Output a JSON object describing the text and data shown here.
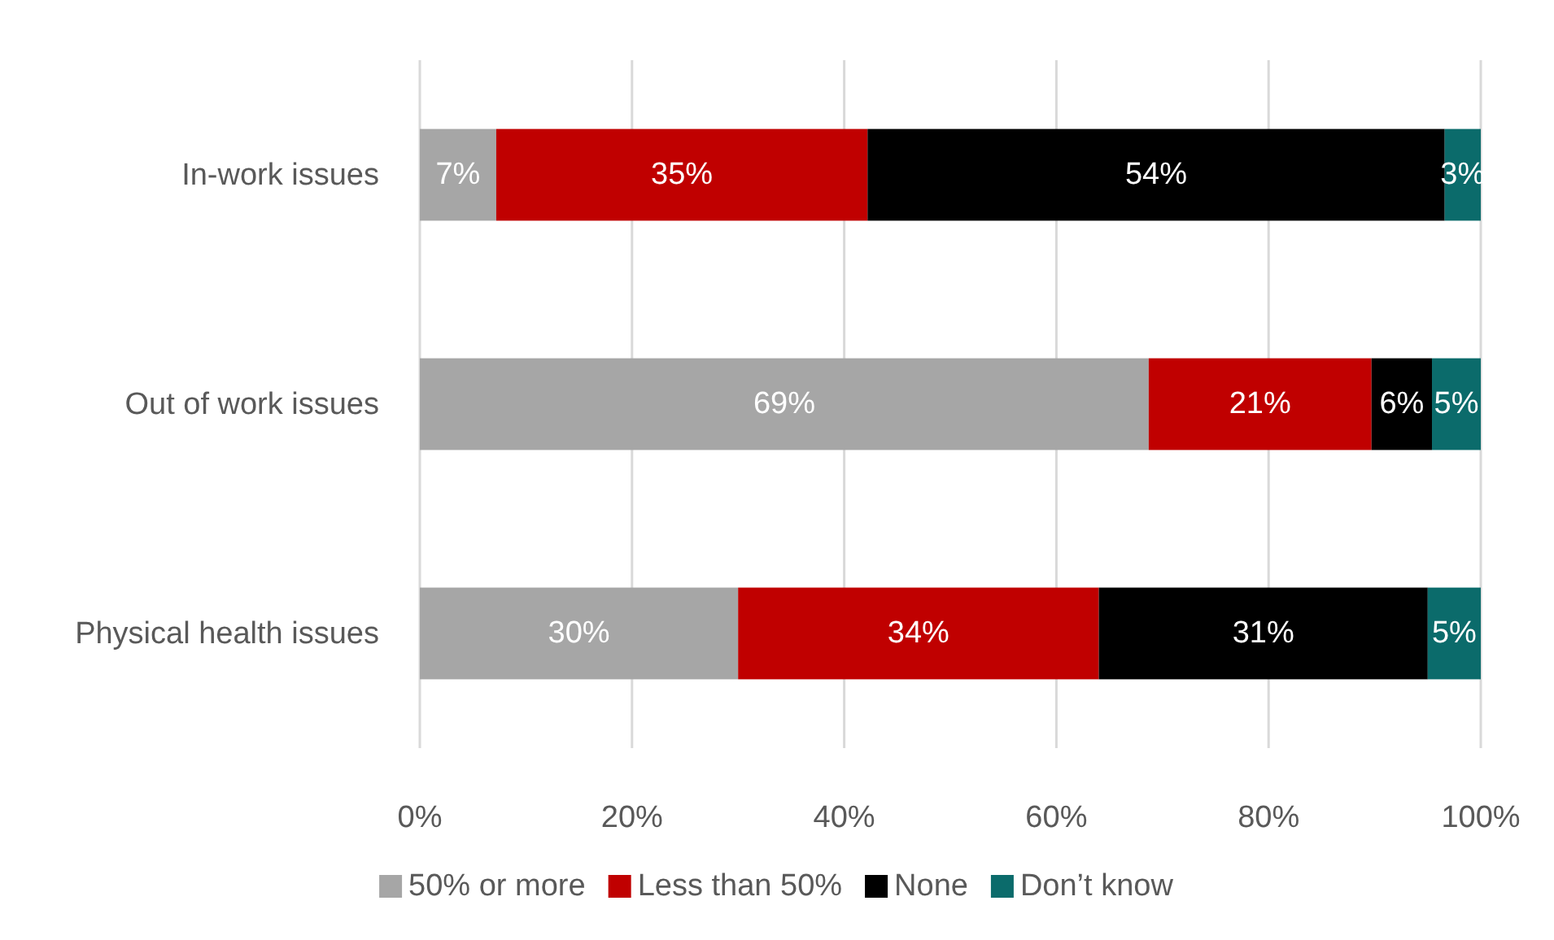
{
  "chart_data": {
    "type": "bar",
    "orientation": "horizontal",
    "stacked": true,
    "categories": [
      "In-work issues",
      "Out of work issues",
      "Physical health issues"
    ],
    "series": [
      {
        "name": "50% or more",
        "color": "#a6a6a6",
        "values": [
          7.2,
          68.7,
          30
        ],
        "value_labels": [
          "7%",
          "69%",
          "30%"
        ]
      },
      {
        "name": "Less than 50%",
        "color": "#c00000",
        "values": [
          35,
          21,
          34
        ],
        "value_labels": [
          "35%",
          "21%",
          "34%"
        ]
      },
      {
        "name": "None",
        "color": "#000000",
        "values": [
          54.4,
          5.7,
          31
        ],
        "value_labels": [
          "54%",
          "6%",
          "31%"
        ]
      },
      {
        "name": "Don’t know",
        "color": "#0b6b6b",
        "values": [
          3.4,
          4.6,
          5
        ],
        "value_labels": [
          "3%",
          "5%",
          "5%"
        ]
      }
    ],
    "xlim": [
      0,
      100
    ],
    "xticks": [
      {
        "value": 0,
        "label": "0%"
      },
      {
        "value": 20,
        "label": "20%"
      },
      {
        "value": 40,
        "label": "40%"
      },
      {
        "value": 60,
        "label": "60%"
      },
      {
        "value": 80,
        "label": "80%"
      },
      {
        "value": 100,
        "label": "100%"
      }
    ],
    "grid": "x",
    "legend": "bottom"
  }
}
